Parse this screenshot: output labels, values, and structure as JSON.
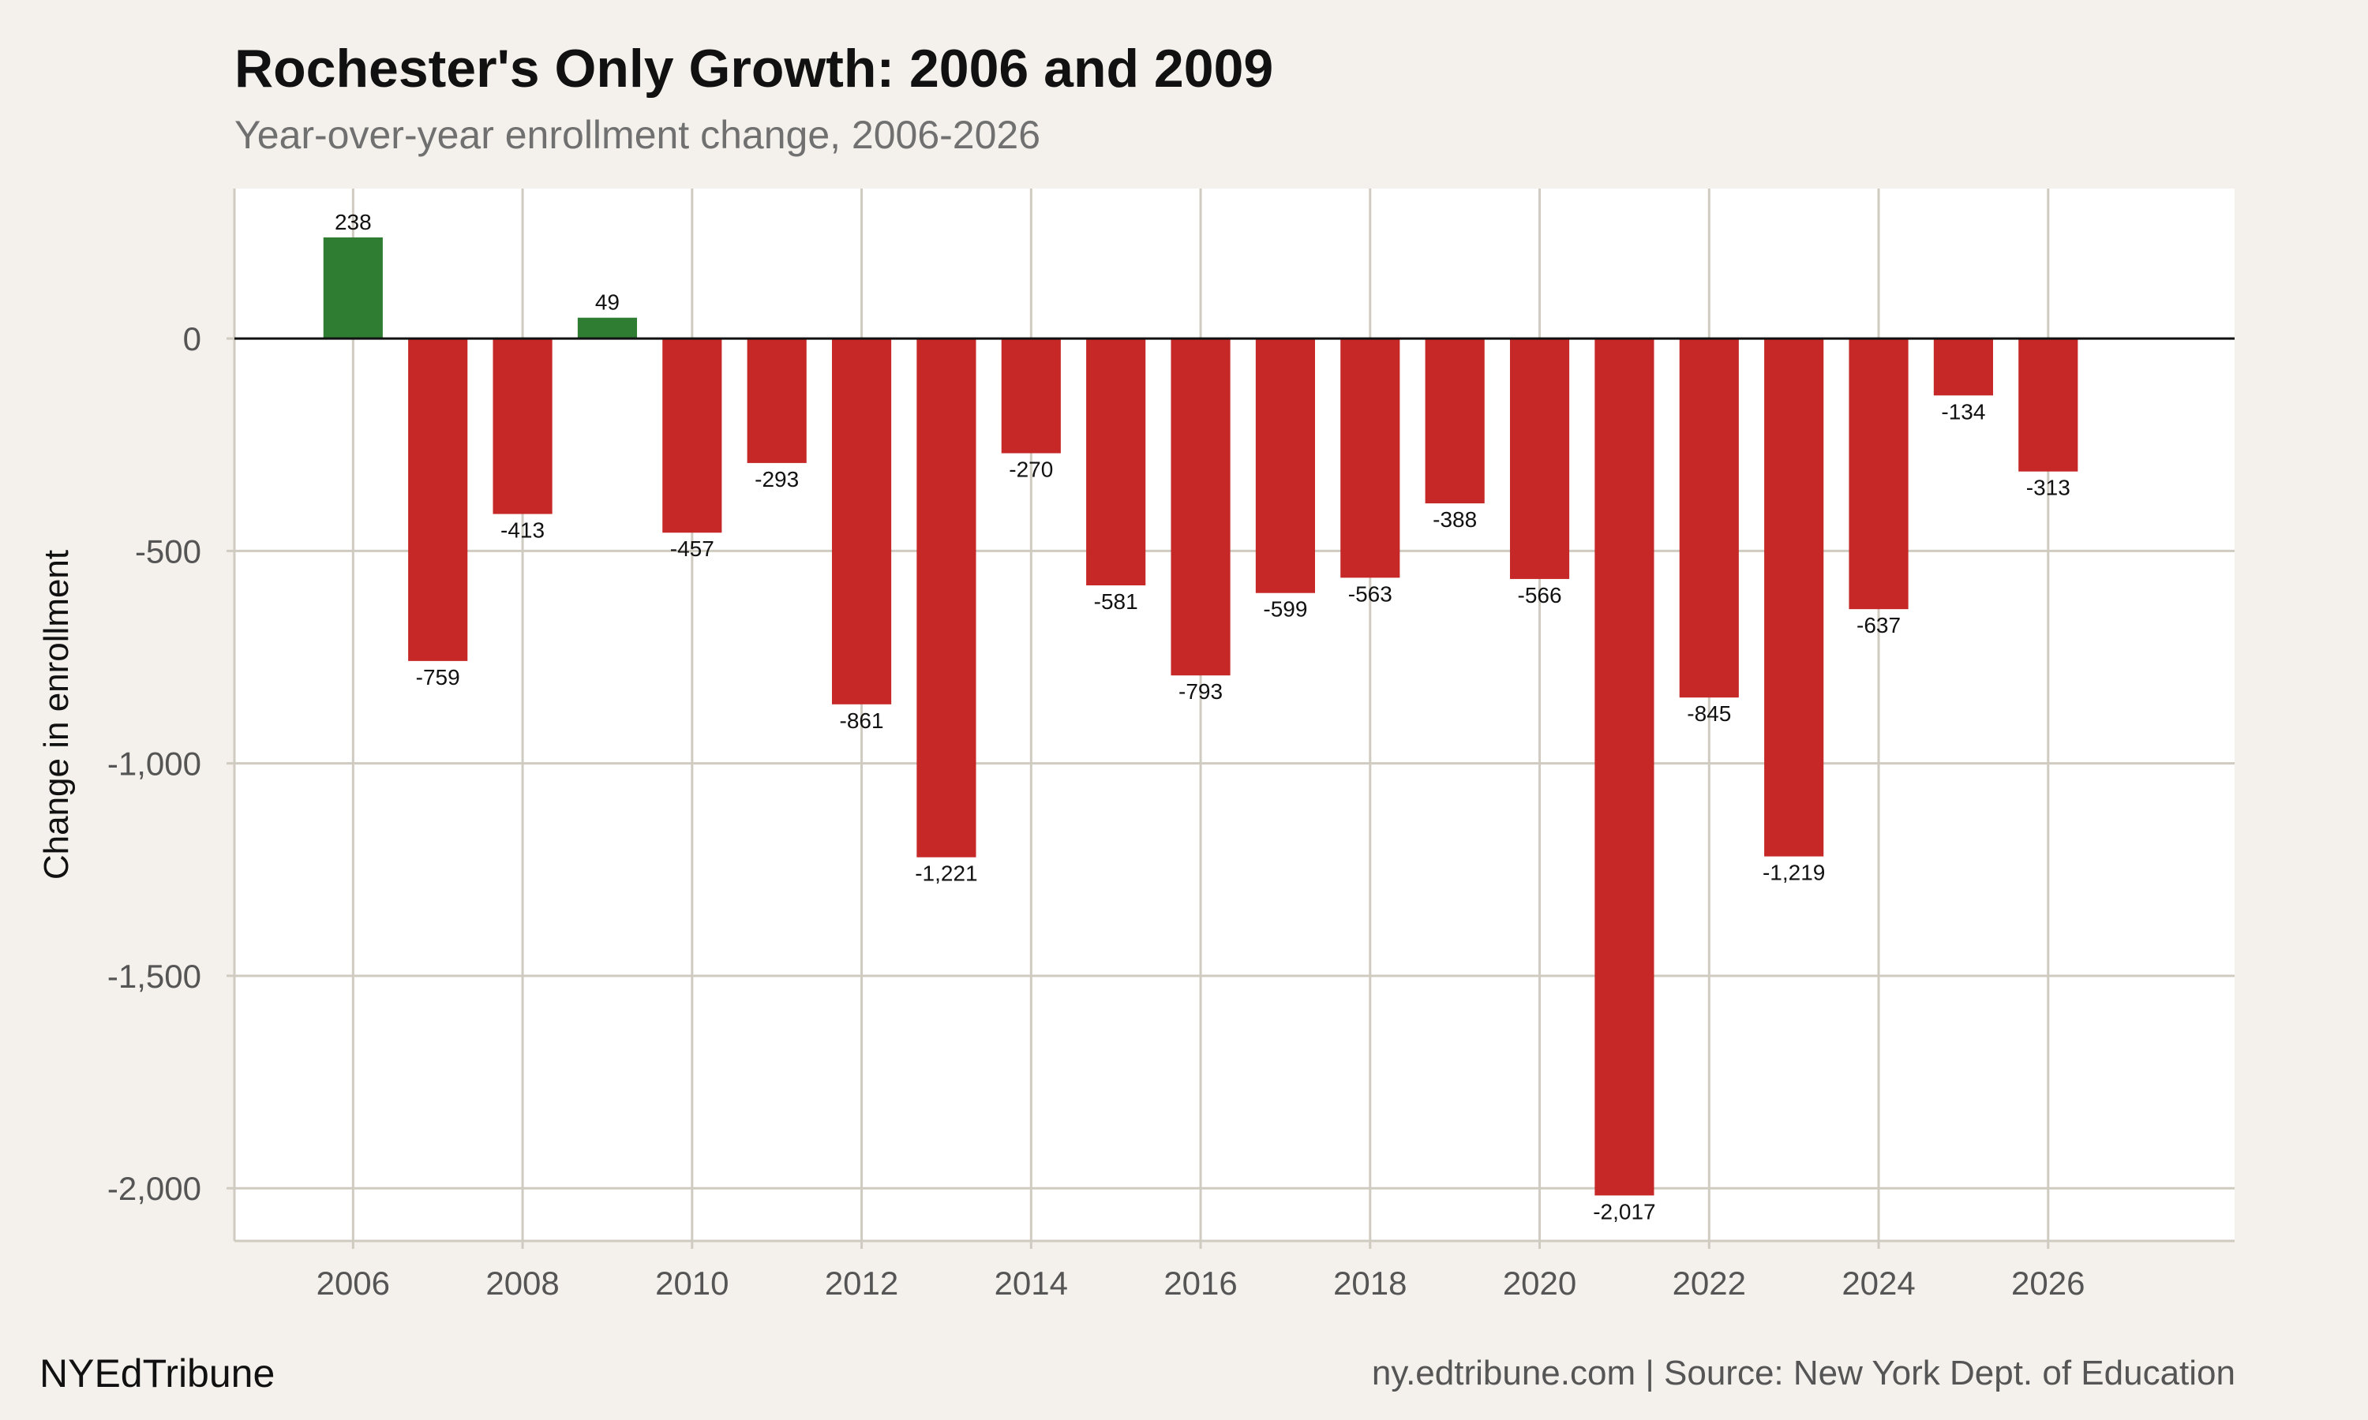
{
  "chart_data": {
    "type": "bar",
    "title": "Rochester's Only Growth: 2006 and 2009",
    "subtitle": "Year-over-year enrollment change, 2006-2026",
    "xlabel": "",
    "ylabel": "Change in enrollment",
    "categories": [
      2006,
      2007,
      2008,
      2009,
      2010,
      2011,
      2012,
      2013,
      2014,
      2015,
      2016,
      2017,
      2018,
      2019,
      2020,
      2021,
      2022,
      2023,
      2024,
      2025,
      2026
    ],
    "values": [
      238,
      -759,
      -413,
      49,
      -457,
      -293,
      -861,
      -1221,
      -270,
      -581,
      -793,
      -599,
      -563,
      -388,
      -566,
      -2017,
      -845,
      -1219,
      -637,
      -134,
      -313
    ],
    "data_labels": [
      "238",
      "-759",
      "-413",
      "49",
      "-457",
      "-293",
      "-861",
      "-1,221",
      "-270",
      "-581",
      "-793",
      "-599",
      "-563",
      "-388",
      "-566",
      "-2,017",
      "-845",
      "-1,219",
      "-637",
      "-134",
      "-313"
    ],
    "x_ticks": [
      "2006",
      "2008",
      "2010",
      "2012",
      "2014",
      "2016",
      "2018",
      "2020",
      "2022",
      "2024",
      "2026"
    ],
    "y_ticks": [
      0,
      -500,
      -1000,
      -1500,
      -2000
    ],
    "y_tick_labels": [
      "0",
      "-500",
      "-1,000",
      "-1,500",
      "-2,000"
    ],
    "xlim": [
      2004.6,
      2028.2
    ],
    "ylim": [
      -2124,
      353
    ],
    "grid": true,
    "legend": "none",
    "colors": {
      "positive": "#2e7d32",
      "negative": "#c62828",
      "background": "#f4f1ec",
      "panel": "#ffffff",
      "grid": "#d0cbc1"
    }
  },
  "footer": {
    "brand": "NYEdTribune",
    "source": "ny.edtribune.com | Source: New York Dept. of Education"
  }
}
